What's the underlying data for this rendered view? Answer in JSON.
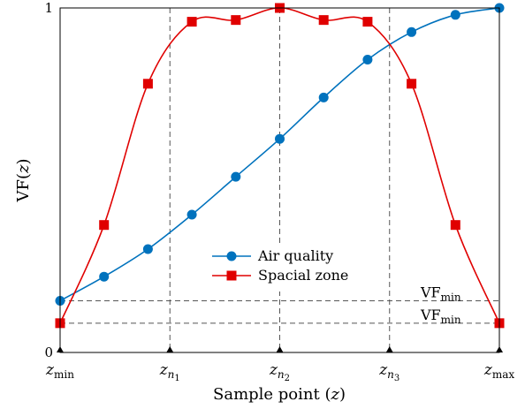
{
  "chart_data": {
    "type": "line",
    "xlabel": "Sample point (z)",
    "ylabel": "VF(z)",
    "ylim": [
      0,
      1
    ],
    "yticks": [
      {
        "value": 0,
        "label": "0"
      },
      {
        "value": 1,
        "label": "1"
      }
    ],
    "xticks": [
      {
        "value": 0,
        "label": "z_min",
        "base": "z",
        "sub": "min"
      },
      {
        "value": 2.5,
        "label": "z_n1",
        "base": "z",
        "sub": "n",
        "subsub": "1"
      },
      {
        "value": 5,
        "label": "z_n2",
        "base": "z",
        "sub": "n",
        "subsub": "2"
      },
      {
        "value": 7.5,
        "label": "z_n3",
        "base": "z",
        "sub": "n",
        "subsub": "3"
      },
      {
        "value": 10,
        "label": "z_max",
        "base": "z",
        "sub": "max"
      }
    ],
    "vlines": [
      2.5,
      5,
      7.5
    ],
    "hlines": [
      {
        "value": 0.15,
        "label": "VF_min",
        "base": "VF",
        "sub": "min"
      },
      {
        "value": 0.085,
        "label": "VF_min",
        "base": "VF",
        "sub": "min"
      }
    ],
    "legend_position": "center",
    "series": [
      {
        "name": "Air quality",
        "color": "#0072BD",
        "marker": "circle",
        "x": [
          0,
          1,
          2,
          3,
          4,
          5,
          6,
          7,
          8,
          9,
          10
        ],
        "y": [
          0.15,
          0.22,
          0.3,
          0.4,
          0.51,
          0.62,
          0.74,
          0.85,
          0.93,
          0.98,
          1.0
        ]
      },
      {
        "name": "Spacial zone",
        "color": "#E00000",
        "marker": "square",
        "x": [
          0,
          1,
          2,
          3,
          4,
          5,
          6,
          7,
          8,
          9,
          10
        ],
        "y": [
          0.085,
          0.37,
          0.78,
          0.96,
          0.965,
          1.0,
          0.965,
          0.96,
          0.78,
          0.37,
          0.085
        ]
      }
    ]
  }
}
